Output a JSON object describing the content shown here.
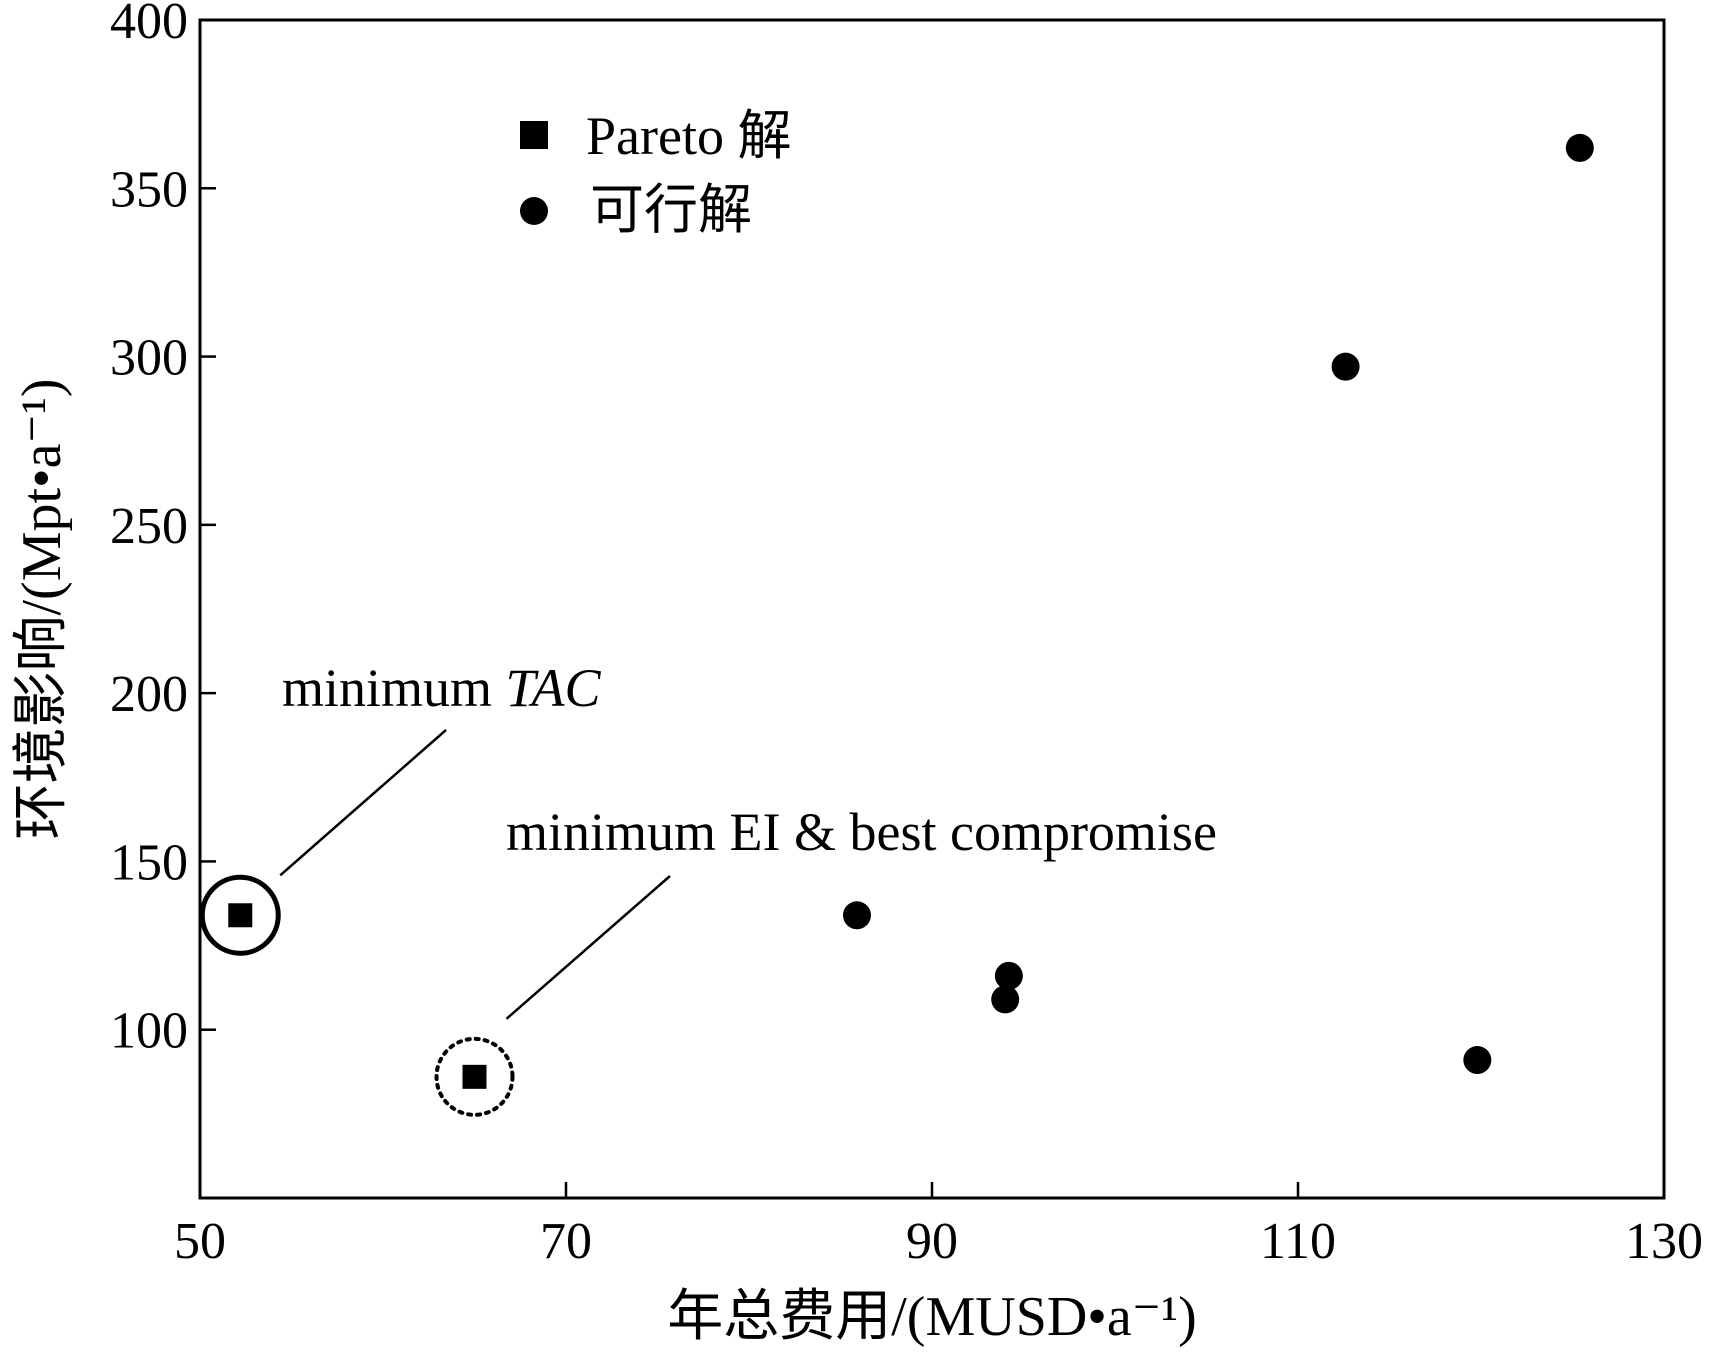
{
  "chart_data": {
    "type": "scatter",
    "xlabel": "年总费用/(MUSD•a⁻¹)",
    "ylabel": "环境影响/(Mpt•a⁻¹)",
    "xlim": [
      50,
      130
    ],
    "ylim": [
      50,
      400
    ],
    "x_ticks": [
      50,
      70,
      90,
      110,
      130
    ],
    "y_ticks": [
      100,
      150,
      200,
      250,
      300,
      350,
      400
    ],
    "y_tick_labels": [
      "100",
      "150",
      "200",
      "250",
      "300",
      "350",
      "400"
    ],
    "x_tick_labels": [
      "50",
      "70",
      "90",
      "110",
      "130"
    ],
    "grid": false,
    "legend_position": "top-left",
    "series": [
      {
        "name": "Pareto 解",
        "marker": "square",
        "color": "#000000",
        "points": [
          {
            "x": 52.2,
            "y": 134
          },
          {
            "x": 65.0,
            "y": 86
          }
        ]
      },
      {
        "name": "可行解",
        "marker": "circle",
        "color": "#000000",
        "points": [
          {
            "x": 85.9,
            "y": 134
          },
          {
            "x": 94.2,
            "y": 116
          },
          {
            "x": 94.0,
            "y": 109
          },
          {
            "x": 112.6,
            "y": 297
          },
          {
            "x": 119.8,
            "y": 91
          },
          {
            "x": 125.4,
            "y": 362
          }
        ]
      }
    ],
    "annotations": [
      {
        "text_plain": "minimum ",
        "text_italic": "TAC",
        "target": {
          "x": 52.2,
          "y": 134
        },
        "ring": "solid"
      },
      {
        "text_plain": "minimum EI & best compromise",
        "text_italic": "",
        "target": {
          "x": 65.0,
          "y": 86
        },
        "ring": "dotted"
      }
    ]
  }
}
